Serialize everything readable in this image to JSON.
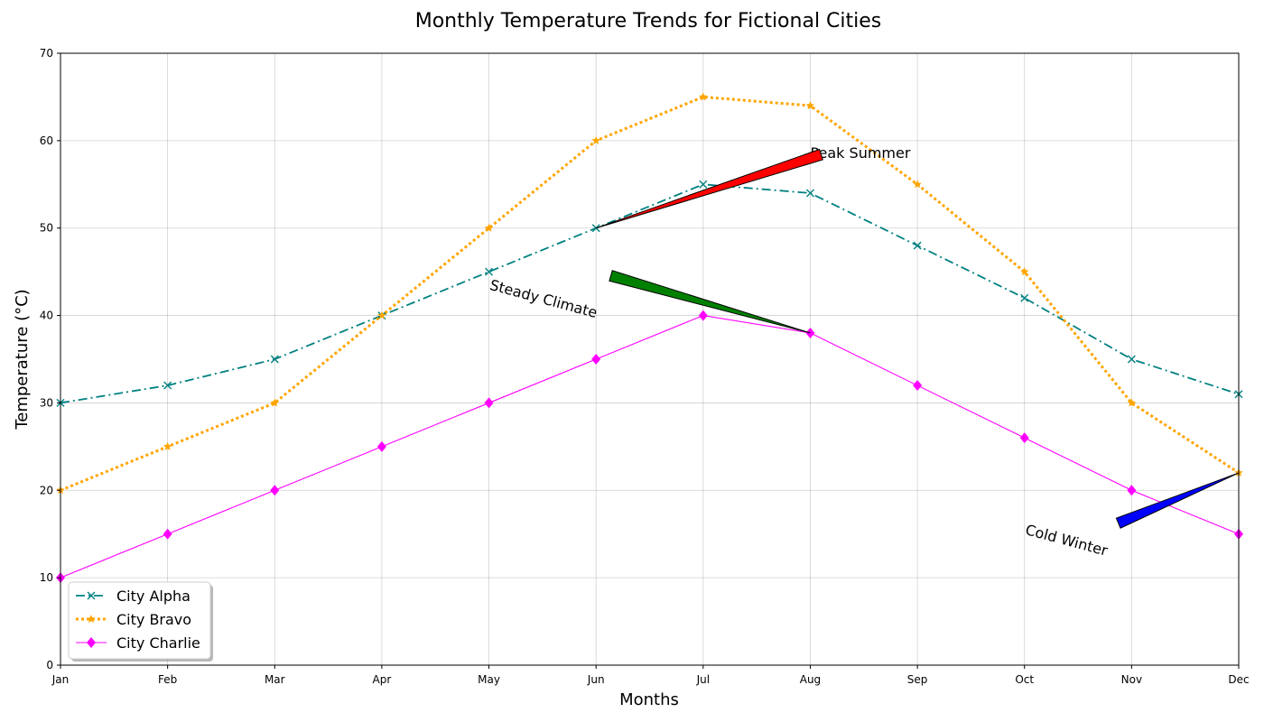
{
  "chart_data": {
    "type": "line",
    "title": "Monthly Temperature Trends for Fictional Cities",
    "xlabel": "Months",
    "ylabel": "Temperature (°C)",
    "categories": [
      "Jan",
      "Feb",
      "Mar",
      "Apr",
      "May",
      "Jun",
      "Jul",
      "Aug",
      "Sep",
      "Oct",
      "Nov",
      "Dec"
    ],
    "ylim": [
      0,
      70
    ],
    "yticks": [
      0,
      10,
      20,
      30,
      40,
      50,
      60,
      70
    ],
    "grid": true,
    "legend_position": "lower-left",
    "series": [
      {
        "name": "City Alpha",
        "values": [
          30,
          32,
          35,
          40,
          45,
          50,
          55,
          54,
          48,
          42,
          35,
          31
        ],
        "color": "#008080",
        "linestyle": "dashdot",
        "marker": "x"
      },
      {
        "name": "City Bravo",
        "values": [
          20,
          25,
          30,
          40,
          50,
          60,
          65,
          64,
          55,
          45,
          30,
          22
        ],
        "color": "#FFA500",
        "linestyle": "dotted",
        "marker": "star"
      },
      {
        "name": "City Charlie",
        "values": [
          10,
          15,
          20,
          25,
          30,
          35,
          40,
          38,
          32,
          26,
          20,
          15
        ],
        "color": "#FF00FF",
        "linestyle": "solid",
        "marker": "diamond"
      }
    ],
    "annotations": [
      {
        "text": "Peak Summer",
        "target_month": "Jun",
        "target_value": 50,
        "text_month": "Aug",
        "text_value": 58,
        "arrow_color": "#FF0000",
        "rotation": 0
      },
      {
        "text": "Steady Climate",
        "target_month": "Aug",
        "target_value": 38,
        "text_month": "May",
        "text_value": 43,
        "arrow_color": "#008000",
        "rotation": -15
      },
      {
        "text": "Cold Winter",
        "target_month": "Dec",
        "target_value": 22,
        "text_month": "Oct",
        "text_value": 15,
        "arrow_color": "#0000FF",
        "rotation": -15
      }
    ]
  }
}
